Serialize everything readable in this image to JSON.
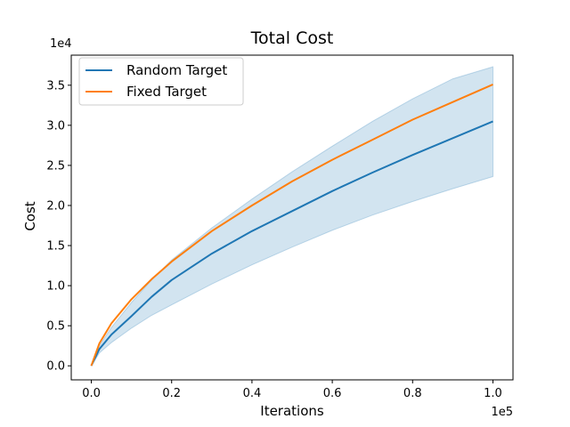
{
  "chart_data": {
    "type": "line",
    "title": "Total Cost",
    "xlabel": "Iterations",
    "ylabel": "Cost",
    "x_offset_label": "1e5",
    "y_offset_label": "1e4",
    "xlim": [
      -5000,
      105000
    ],
    "ylim": [
      -1750,
      38750
    ],
    "x_ticks": [
      0,
      20000,
      40000,
      60000,
      80000,
      100000
    ],
    "x_tick_labels": [
      "0.0",
      "0.2",
      "0.4",
      "0.6",
      "0.8",
      "1.0"
    ],
    "y_ticks": [
      0,
      5000,
      10000,
      15000,
      20000,
      25000,
      30000,
      35000
    ],
    "y_tick_labels": [
      "0.0",
      "0.5",
      "1.0",
      "1.5",
      "2.0",
      "2.5",
      "3.0",
      "3.5"
    ],
    "grid": false,
    "legend_position": "top-left",
    "series": [
      {
        "name": "Random Target",
        "color": "#1f77b4",
        "x": [
          0,
          2000,
          5000,
          10000,
          15000,
          20000,
          30000,
          40000,
          50000,
          60000,
          70000,
          80000,
          90000,
          100000
        ],
        "y": [
          0,
          2100,
          3900,
          6200,
          8600,
          10700,
          14000,
          16800,
          19300,
          21800,
          24100,
          26300,
          28400,
          30500
        ],
        "band_lower": [
          0,
          1600,
          2900,
          4700,
          6300,
          7600,
          10200,
          12600,
          14800,
          16900,
          18800,
          20500,
          22100,
          23600
        ],
        "band_upper": [
          0,
          2500,
          4800,
          7900,
          10700,
          13200,
          17200,
          20800,
          24200,
          27400,
          30500,
          33300,
          35800,
          37300
        ],
        "band_color": "#1f77b4"
      },
      {
        "name": "Fixed Target",
        "color": "#ff7f0e",
        "x": [
          0,
          2000,
          5000,
          10000,
          15000,
          20000,
          30000,
          40000,
          50000,
          60000,
          70000,
          80000,
          90000,
          100000
        ],
        "y": [
          0,
          2800,
          5300,
          8300,
          10800,
          13000,
          16800,
          20000,
          23000,
          25700,
          28200,
          30700,
          32900,
          35100
        ]
      }
    ]
  }
}
